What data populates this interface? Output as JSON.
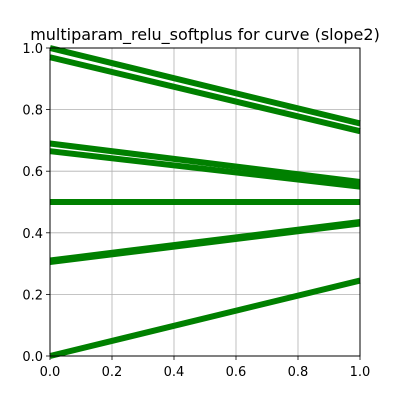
{
  "chart_data": {
    "type": "line",
    "title": "multiparam_relu_softplus for curve (slope2)",
    "xlabel": "",
    "ylabel": "",
    "xlim": [
      0,
      1
    ],
    "ylim": [
      0,
      1
    ],
    "xticks": [
      "0.0",
      "0.2",
      "0.4",
      "0.6",
      "0.8",
      "1.0"
    ],
    "yticks": [
      "0.0",
      "0.2",
      "0.4",
      "0.6",
      "0.8",
      "1.0"
    ],
    "grid": true,
    "legend": "none",
    "line_color": "#008000",
    "series": [
      {
        "x": [
          0,
          1
        ],
        "y": [
          1.0,
          0.755
        ]
      },
      {
        "x": [
          0,
          1
        ],
        "y": [
          0.97,
          0.73
        ]
      },
      {
        "x": [
          0,
          1
        ],
        "y": [
          0.69,
          0.565
        ]
      },
      {
        "x": [
          0,
          1
        ],
        "y": [
          0.665,
          0.55
        ]
      },
      {
        "x": [
          0,
          1
        ],
        "y": [
          0.5,
          0.5
        ]
      },
      {
        "x": [
          0,
          1
        ],
        "y": [
          0.5,
          0.5
        ]
      },
      {
        "x": [
          0,
          1
        ],
        "y": [
          0.31,
          0.435
        ]
      },
      {
        "x": [
          0,
          1
        ],
        "y": [
          0.305,
          0.43
        ]
      },
      {
        "x": [
          0,
          1
        ],
        "y": [
          0.0,
          0.245
        ]
      }
    ]
  }
}
